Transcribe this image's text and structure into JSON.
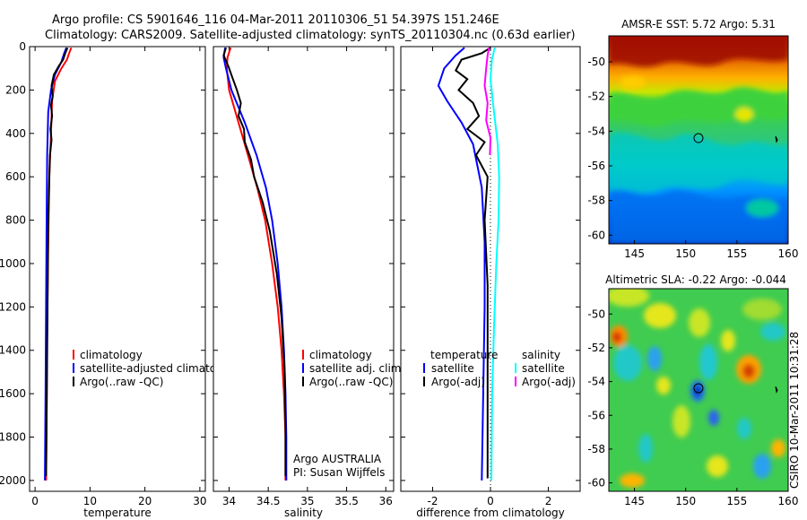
{
  "header": {
    "line1": "Argo profile: CS 5901646_116 04-Mar-2011 20110306_51 54.397S 151.246E",
    "line2": "Climatology: CARS2009. Satellite-adjusted climatology: synTS_20110304.nc (0.63d earlier)"
  },
  "side_text": "CSIRO 10-Mar-2011 10:31:28",
  "chart_data": [
    {
      "id": "temperature",
      "type": "line",
      "xlabel": "temperature",
      "ylabel": "",
      "xlim": [
        -1,
        31
      ],
      "ylim": [
        2050,
        0
      ],
      "xticks": [
        0,
        10,
        20,
        30
      ],
      "yticks": [
        0,
        200,
        400,
        600,
        800,
        1000,
        1200,
        1400,
        1600,
        1800,
        2000
      ],
      "legend": [
        "climatology",
        "satellite-adjusted climatology",
        "Argo(..raw -QC)"
      ],
      "series": [
        {
          "name": "climatology",
          "color": "#ff0000",
          "points": [
            [
              6.6,
              5
            ],
            [
              6.2,
              30
            ],
            [
              5.8,
              60
            ],
            [
              4.8,
              100
            ],
            [
              3.6,
              160
            ],
            [
              3.1,
              250
            ],
            [
              2.9,
              400
            ],
            [
              2.6,
              600
            ],
            [
              2.4,
              900
            ],
            [
              2.2,
              1300
            ],
            [
              2.1,
              1700
            ],
            [
              2.0,
              2000
            ]
          ]
        },
        {
          "name": "satellite-adjusted climatology",
          "color": "#0000ff",
          "points": [
            [
              5.7,
              5
            ],
            [
              5.3,
              30
            ],
            [
              4.8,
              70
            ],
            [
              3.6,
              130
            ],
            [
              2.9,
              200
            ],
            [
              2.4,
              300
            ],
            [
              2.2,
              500
            ],
            [
              2.1,
              800
            ],
            [
              2.0,
              1200
            ],
            [
              1.9,
              1600
            ],
            [
              1.8,
              2000
            ]
          ]
        },
        {
          "name": "Argo(..raw -QC)",
          "color": "#000000",
          "points": [
            [
              5.9,
              5
            ],
            [
              5.5,
              30
            ],
            [
              5.1,
              60
            ],
            [
              4.3,
              90
            ],
            [
              3.4,
              130
            ],
            [
              3.0,
              180
            ],
            [
              3.2,
              230
            ],
            [
              2.9,
              270
            ],
            [
              3.1,
              320
            ],
            [
              2.8,
              380
            ],
            [
              3.0,
              430
            ],
            [
              2.7,
              500
            ],
            [
              2.6,
              600
            ],
            [
              2.4,
              800
            ],
            [
              2.3,
              1100
            ],
            [
              2.2,
              1400
            ],
            [
              2.1,
              1700
            ],
            [
              2.0,
              1980
            ]
          ]
        }
      ]
    },
    {
      "id": "salinity",
      "type": "line",
      "xlabel": "salinity",
      "ylabel": "",
      "xlim": [
        33.8,
        36.1
      ],
      "ylim": [
        2050,
        0
      ],
      "xticks": [
        34,
        34.5,
        35,
        35.5,
        36
      ],
      "yticks": [
        0,
        200,
        400,
        600,
        800,
        1000,
        1200,
        1400,
        1600,
        1800,
        2000
      ],
      "legend": [
        "climatology",
        "satellite adj. clim.",
        "Argo(..raw -QC)"
      ],
      "annotation": [
        "Argo AUSTRALIA",
        "PI: Susan Wijffels"
      ],
      "series": [
        {
          "name": "climatology",
          "color": "#ff0000",
          "points": [
            [
              34.02,
              5
            ],
            [
              33.98,
              50
            ],
            [
              33.97,
              100
            ],
            [
              34.0,
              200
            ],
            [
              34.12,
              350
            ],
            [
              34.24,
              500
            ],
            [
              34.36,
              650
            ],
            [
              34.46,
              800
            ],
            [
              34.55,
              1000
            ],
            [
              34.62,
              1200
            ],
            [
              34.67,
              1400
            ],
            [
              34.7,
              1600
            ],
            [
              34.72,
              1800
            ],
            [
              34.72,
              2000
            ]
          ]
        },
        {
          "name": "satellite adj. clim.",
          "color": "#0000ff",
          "points": [
            [
              33.95,
              5
            ],
            [
              33.93,
              50
            ],
            [
              33.96,
              100
            ],
            [
              34.03,
              200
            ],
            [
              34.2,
              350
            ],
            [
              34.35,
              500
            ],
            [
              34.47,
              650
            ],
            [
              34.55,
              800
            ],
            [
              34.62,
              1000
            ],
            [
              34.67,
              1200
            ],
            [
              34.7,
              1400
            ],
            [
              34.72,
              1600
            ],
            [
              34.73,
              1800
            ],
            [
              34.73,
              2000
            ]
          ]
        },
        {
          "name": "Argo(..raw -QC)",
          "color": "#000000",
          "points": [
            [
              33.96,
              5
            ],
            [
              33.93,
              40
            ],
            [
              33.99,
              90
            ],
            [
              34.05,
              150
            ],
            [
              34.1,
              200
            ],
            [
              34.15,
              260
            ],
            [
              34.12,
              320
            ],
            [
              34.19,
              380
            ],
            [
              34.2,
              440
            ],
            [
              34.28,
              520
            ],
            [
              34.32,
              600
            ],
            [
              34.43,
              720
            ],
            [
              34.52,
              850
            ],
            [
              34.61,
              1050
            ],
            [
              34.67,
              1250
            ],
            [
              34.71,
              1500
            ],
            [
              34.72,
              1750
            ],
            [
              34.72,
              1980
            ]
          ]
        }
      ]
    },
    {
      "id": "difference",
      "type": "line",
      "xlabel": "difference from climatology",
      "ylabel": "",
      "xlim": [
        -3.1,
        3.1
      ],
      "ylim": [
        2050,
        0
      ],
      "xticks": [
        -2,
        0,
        2
      ],
      "yticks": [
        0,
        200,
        400,
        600,
        800,
        1000,
        1200,
        1400,
        1600,
        1800,
        2000
      ],
      "legend_left": [
        "temperature",
        "satellite",
        "Argo(-adj)"
      ],
      "legend_right": [
        "salinity",
        "satellite",
        "Argo(-adj)"
      ],
      "series": [
        {
          "name": "temperature satellite",
          "color": "#0000ff",
          "points": [
            [
              -0.9,
              5
            ],
            [
              -1.2,
              40
            ],
            [
              -1.6,
              100
            ],
            [
              -1.8,
              180
            ],
            [
              -1.5,
              250
            ],
            [
              -1.0,
              350
            ],
            [
              -0.6,
              450
            ],
            [
              -0.3,
              650
            ],
            [
              -0.2,
              900
            ],
            [
              -0.2,
              1200
            ],
            [
              -0.25,
              1600
            ],
            [
              -0.3,
              2000
            ]
          ]
        },
        {
          "name": "temperature Argo(-adj)",
          "color": "#000000",
          "points": [
            [
              0.0,
              5
            ],
            [
              -0.3,
              30
            ],
            [
              -1.0,
              60
            ],
            [
              -1.2,
              110
            ],
            [
              -0.8,
              150
            ],
            [
              -1.1,
              200
            ],
            [
              -0.6,
              260
            ],
            [
              -0.4,
              320
            ],
            [
              -0.8,
              380
            ],
            [
              -0.2,
              440
            ],
            [
              -0.5,
              500
            ],
            [
              -0.1,
              600
            ],
            [
              -0.2,
              800
            ],
            [
              -0.1,
              1100
            ],
            [
              -0.1,
              1400
            ],
            [
              -0.1,
              1700
            ],
            [
              -0.1,
              1990
            ]
          ]
        },
        {
          "name": "salinity satellite",
          "color": "#00ffff",
          "points": [
            [
              0.15,
              5
            ],
            [
              0.05,
              60
            ],
            [
              0.0,
              150
            ],
            [
              0.12,
              300
            ],
            [
              0.25,
              450
            ],
            [
              0.3,
              600
            ],
            [
              0.28,
              800
            ],
            [
              0.2,
              1000
            ],
            [
              0.12,
              1300
            ],
            [
              0.06,
              1600
            ],
            [
              0.03,
              2000
            ]
          ]
        },
        {
          "name": "salinity Argo(-adj)",
          "color": "#ff00ff",
          "points": [
            [
              -0.05,
              5
            ],
            [
              -0.1,
              40
            ],
            [
              -0.15,
              100
            ],
            [
              -0.2,
              180
            ],
            [
              -0.1,
              260
            ],
            [
              -0.15,
              340
            ],
            [
              0.0,
              420
            ],
            [
              -0.02,
              500
            ]
          ]
        }
      ],
      "zero_line": "dotted"
    }
  ],
  "maps": [
    {
      "id": "sst",
      "title": "AMSR-E SST: 5.72  Argo: 5.31",
      "xlim": [
        142.5,
        160
      ],
      "ylim": [
        -60.5,
        -48.5
      ],
      "xticks": [
        145,
        150,
        155,
        160
      ],
      "yticks": [
        -50,
        -52,
        -54,
        -56,
        -58,
        -60
      ],
      "marker": [
        151.246,
        -54.397
      ]
    },
    {
      "id": "sla",
      "title": "Altimetric SLA: -0.22  Argo: -0.044",
      "xlim": [
        142.5,
        160
      ],
      "ylim": [
        -60.5,
        -48.5
      ],
      "xticks": [
        145,
        150,
        155,
        160
      ],
      "yticks": [
        -50,
        -52,
        -54,
        -56,
        -58,
        -60
      ],
      "marker": [
        151.246,
        -54.397
      ]
    }
  ]
}
